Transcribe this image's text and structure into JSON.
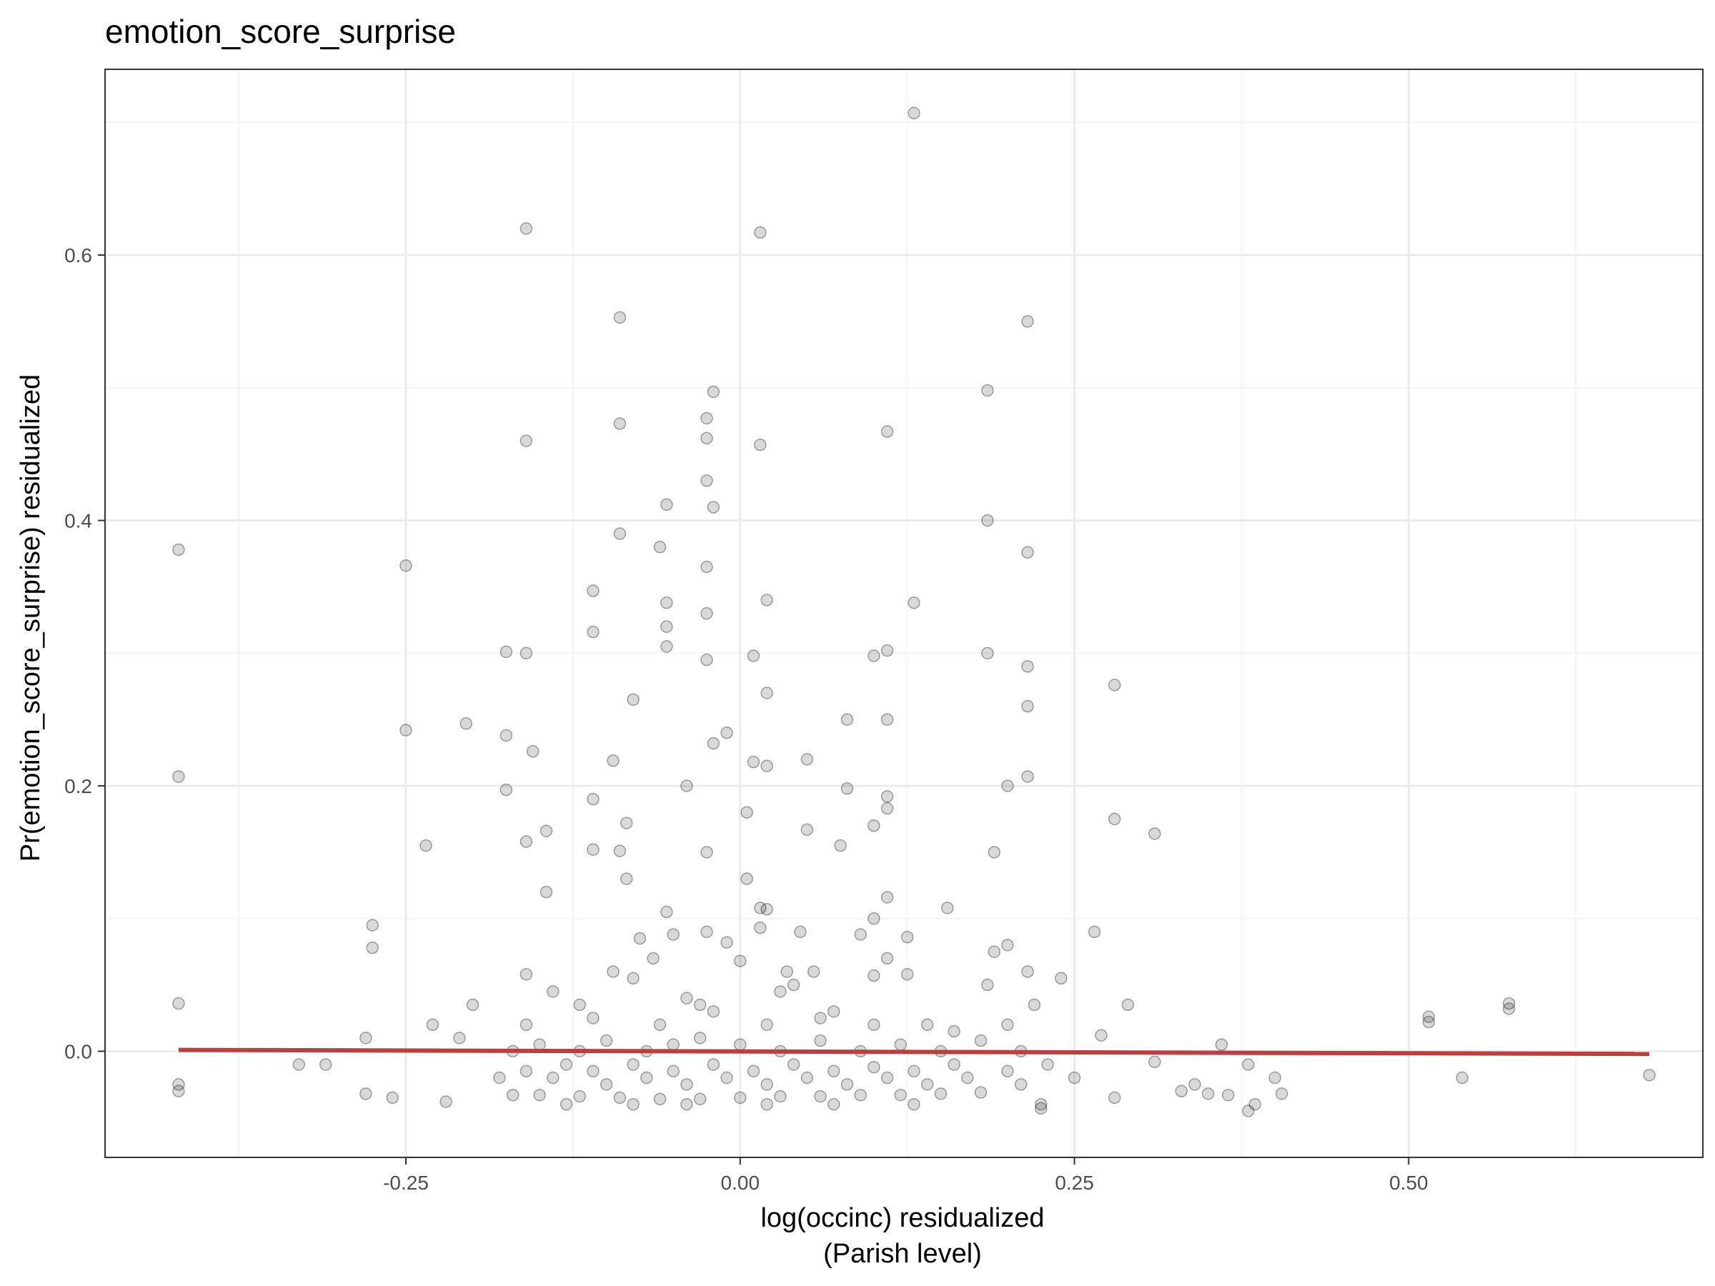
{
  "chart_data": {
    "type": "scatter",
    "title": "emotion_score_surprise",
    "xlabel_line1": "log(occinc) residualized",
    "xlabel_line2": "(Parish level)",
    "ylabel": "Pr(emotion_score_surprise) residualized",
    "xlim": [
      -0.475,
      0.72
    ],
    "ylim": [
      -0.08,
      0.74
    ],
    "x_ticks": [
      {
        "value": -0.25,
        "label": "-0.25"
      },
      {
        "value": 0.0,
        "label": "0.00"
      },
      {
        "value": 0.25,
        "label": "0.25"
      },
      {
        "value": 0.5,
        "label": "0.50"
      }
    ],
    "y_ticks": [
      {
        "value": 0.0,
        "label": "0.0"
      },
      {
        "value": 0.2,
        "label": "0.2"
      },
      {
        "value": 0.4,
        "label": "0.4"
      },
      {
        "value": 0.6,
        "label": "0.6"
      }
    ],
    "grid": true,
    "fit_line": {
      "color": "#b94040",
      "x": [
        -0.42,
        0.68
      ],
      "y": [
        0.001,
        -0.002
      ]
    },
    "point_color": "#000000",
    "points": [
      {
        "x": 0.13,
        "y": 0.707
      },
      {
        "x": -0.16,
        "y": 0.62
      },
      {
        "x": 0.015,
        "y": 0.617
      },
      {
        "x": -0.09,
        "y": 0.553
      },
      {
        "x": 0.215,
        "y": 0.55
      },
      {
        "x": -0.02,
        "y": 0.497
      },
      {
        "x": 0.185,
        "y": 0.498
      },
      {
        "x": -0.025,
        "y": 0.477
      },
      {
        "x": -0.09,
        "y": 0.473
      },
      {
        "x": 0.11,
        "y": 0.467
      },
      {
        "x": -0.025,
        "y": 0.462
      },
      {
        "x": -0.16,
        "y": 0.46
      },
      {
        "x": 0.015,
        "y": 0.457
      },
      {
        "x": -0.025,
        "y": 0.43
      },
      {
        "x": -0.055,
        "y": 0.412
      },
      {
        "x": -0.02,
        "y": 0.41
      },
      {
        "x": 0.185,
        "y": 0.4
      },
      {
        "x": -0.09,
        "y": 0.39
      },
      {
        "x": -0.06,
        "y": 0.38
      },
      {
        "x": -0.42,
        "y": 0.378
      },
      {
        "x": 0.215,
        "y": 0.376
      },
      {
        "x": -0.25,
        "y": 0.366
      },
      {
        "x": -0.025,
        "y": 0.365
      },
      {
        "x": -0.11,
        "y": 0.347
      },
      {
        "x": 0.02,
        "y": 0.34
      },
      {
        "x": 0.13,
        "y": 0.338
      },
      {
        "x": -0.055,
        "y": 0.338
      },
      {
        "x": -0.055,
        "y": 0.32
      },
      {
        "x": -0.11,
        "y": 0.316
      },
      {
        "x": -0.025,
        "y": 0.33
      },
      {
        "x": -0.055,
        "y": 0.305
      },
      {
        "x": 0.11,
        "y": 0.302
      },
      {
        "x": -0.175,
        "y": 0.301
      },
      {
        "x": -0.16,
        "y": 0.3
      },
      {
        "x": 0.185,
        "y": 0.3
      },
      {
        "x": 0.01,
        "y": 0.298
      },
      {
        "x": 0.1,
        "y": 0.298
      },
      {
        "x": -0.025,
        "y": 0.295
      },
      {
        "x": 0.215,
        "y": 0.29
      },
      {
        "x": 0.28,
        "y": 0.276
      },
      {
        "x": 0.02,
        "y": 0.27
      },
      {
        "x": -0.08,
        "y": 0.265
      },
      {
        "x": 0.215,
        "y": 0.26
      },
      {
        "x": 0.08,
        "y": 0.25
      },
      {
        "x": 0.11,
        "y": 0.25
      },
      {
        "x": -0.205,
        "y": 0.247
      },
      {
        "x": -0.25,
        "y": 0.242
      },
      {
        "x": -0.01,
        "y": 0.24
      },
      {
        "x": -0.175,
        "y": 0.238
      },
      {
        "x": -0.02,
        "y": 0.232
      },
      {
        "x": -0.155,
        "y": 0.226
      },
      {
        "x": 0.05,
        "y": 0.22
      },
      {
        "x": -0.095,
        "y": 0.219
      },
      {
        "x": 0.01,
        "y": 0.218
      },
      {
        "x": 0.02,
        "y": 0.215
      },
      {
        "x": -0.42,
        "y": 0.207
      },
      {
        "x": 0.215,
        "y": 0.207
      },
      {
        "x": -0.04,
        "y": 0.2
      },
      {
        "x": 0.2,
        "y": 0.2
      },
      {
        "x": 0.08,
        "y": 0.198
      },
      {
        "x": -0.175,
        "y": 0.197
      },
      {
        "x": 0.11,
        "y": 0.192
      },
      {
        "x": -0.11,
        "y": 0.19
      },
      {
        "x": 0.11,
        "y": 0.183
      },
      {
        "x": 0.005,
        "y": 0.18
      },
      {
        "x": 0.28,
        "y": 0.175
      },
      {
        "x": -0.085,
        "y": 0.172
      },
      {
        "x": 0.1,
        "y": 0.17
      },
      {
        "x": -0.145,
        "y": 0.166
      },
      {
        "x": 0.05,
        "y": 0.167
      },
      {
        "x": 0.31,
        "y": 0.164
      },
      {
        "x": -0.16,
        "y": 0.158
      },
      {
        "x": -0.235,
        "y": 0.155
      },
      {
        "x": 0.075,
        "y": 0.155
      },
      {
        "x": -0.11,
        "y": 0.152
      },
      {
        "x": -0.09,
        "y": 0.151
      },
      {
        "x": -0.025,
        "y": 0.15
      },
      {
        "x": 0.19,
        "y": 0.15
      },
      {
        "x": -0.085,
        "y": 0.13
      },
      {
        "x": 0.005,
        "y": 0.13
      },
      {
        "x": -0.145,
        "y": 0.12
      },
      {
        "x": 0.11,
        "y": 0.116
      },
      {
        "x": 0.015,
        "y": 0.108
      },
      {
        "x": 0.155,
        "y": 0.108
      },
      {
        "x": 0.02,
        "y": 0.107
      },
      {
        "x": -0.055,
        "y": 0.105
      },
      {
        "x": 0.1,
        "y": 0.1
      },
      {
        "x": -0.275,
        "y": 0.095
      },
      {
        "x": 0.015,
        "y": 0.093
      },
      {
        "x": 0.265,
        "y": 0.09
      },
      {
        "x": -0.025,
        "y": 0.09
      },
      {
        "x": 0.09,
        "y": 0.088
      },
      {
        "x": -0.05,
        "y": 0.088
      },
      {
        "x": 0.045,
        "y": 0.09
      },
      {
        "x": -0.075,
        "y": 0.085
      },
      {
        "x": 0.125,
        "y": 0.086
      },
      {
        "x": -0.01,
        "y": 0.082
      },
      {
        "x": -0.275,
        "y": 0.078
      },
      {
        "x": 0.2,
        "y": 0.08
      },
      {
        "x": 0.19,
        "y": 0.075
      },
      {
        "x": 0.11,
        "y": 0.07
      },
      {
        "x": -0.065,
        "y": 0.07
      },
      {
        "x": 0.0,
        "y": 0.068
      },
      {
        "x": -0.095,
        "y": 0.06
      },
      {
        "x": 0.215,
        "y": 0.06
      },
      {
        "x": 0.035,
        "y": 0.06
      },
      {
        "x": 0.1,
        "y": 0.057
      },
      {
        "x": 0.125,
        "y": 0.058
      },
      {
        "x": 0.055,
        "y": 0.06
      },
      {
        "x": 0.24,
        "y": 0.055
      },
      {
        "x": -0.16,
        "y": 0.058
      },
      {
        "x": -0.08,
        "y": 0.055
      },
      {
        "x": 0.04,
        "y": 0.05
      },
      {
        "x": 0.185,
        "y": 0.05
      },
      {
        "x": -0.42,
        "y": 0.036
      },
      {
        "x": 0.575,
        "y": 0.036
      },
      {
        "x": 0.575,
        "y": 0.032
      },
      {
        "x": 0.515,
        "y": 0.026
      },
      {
        "x": 0.515,
        "y": 0.022
      },
      {
        "x": 0.29,
        "y": 0.035
      },
      {
        "x": 0.22,
        "y": 0.035
      },
      {
        "x": -0.2,
        "y": 0.035
      },
      {
        "x": -0.12,
        "y": 0.035
      },
      {
        "x": -0.03,
        "y": 0.035
      },
      {
        "x": 0.07,
        "y": 0.03
      },
      {
        "x": -0.23,
        "y": 0.02
      },
      {
        "x": 0.14,
        "y": 0.02
      },
      {
        "x": 0.27,
        "y": 0.012
      },
      {
        "x": -0.28,
        "y": 0.01
      },
      {
        "x": -0.21,
        "y": 0.01
      },
      {
        "x": 0.36,
        "y": 0.005
      },
      {
        "x": -0.33,
        "y": -0.01
      },
      {
        "x": -0.31,
        "y": -0.01
      },
      {
        "x": 0.31,
        "y": -0.008
      },
      {
        "x": 0.38,
        "y": -0.01
      },
      {
        "x": 0.4,
        "y": -0.02
      },
      {
        "x": 0.54,
        "y": -0.02
      },
      {
        "x": 0.68,
        "y": -0.018
      },
      {
        "x": 0.34,
        "y": -0.025
      },
      {
        "x": -0.42,
        "y": -0.025
      },
      {
        "x": -0.42,
        "y": -0.03
      },
      {
        "x": -0.28,
        "y": -0.032
      },
      {
        "x": -0.26,
        "y": -0.035
      },
      {
        "x": 0.225,
        "y": -0.04
      },
      {
        "x": 0.225,
        "y": -0.043
      },
      {
        "x": 0.385,
        "y": -0.04
      },
      {
        "x": 0.38,
        "y": -0.045
      },
      {
        "x": -0.22,
        "y": -0.038
      },
      {
        "x": 0.28,
        "y": -0.035
      },
      {
        "x": 0.33,
        "y": -0.03
      },
      {
        "x": 0.35,
        "y": -0.032
      },
      {
        "x": 0.365,
        "y": -0.033
      },
      {
        "x": 0.405,
        "y": -0.032
      },
      {
        "x": -0.17,
        "y": -0.033
      },
      {
        "x": -0.15,
        "y": -0.033
      },
      {
        "x": -0.12,
        "y": -0.034
      },
      {
        "x": -0.09,
        "y": -0.035
      },
      {
        "x": -0.06,
        "y": -0.036
      },
      {
        "x": -0.03,
        "y": -0.036
      },
      {
        "x": 0.0,
        "y": -0.035
      },
      {
        "x": 0.03,
        "y": -0.034
      },
      {
        "x": 0.06,
        "y": -0.034
      },
      {
        "x": 0.09,
        "y": -0.033
      },
      {
        "x": 0.12,
        "y": -0.033
      },
      {
        "x": 0.15,
        "y": -0.032
      },
      {
        "x": 0.18,
        "y": -0.031
      },
      {
        "x": -0.18,
        "y": -0.02
      },
      {
        "x": -0.16,
        "y": -0.015
      },
      {
        "x": -0.14,
        "y": -0.02
      },
      {
        "x": -0.13,
        "y": -0.01
      },
      {
        "x": -0.11,
        "y": -0.015
      },
      {
        "x": -0.1,
        "y": -0.025
      },
      {
        "x": -0.08,
        "y": -0.01
      },
      {
        "x": -0.07,
        "y": -0.02
      },
      {
        "x": -0.05,
        "y": -0.015
      },
      {
        "x": -0.04,
        "y": -0.025
      },
      {
        "x": -0.02,
        "y": -0.01
      },
      {
        "x": -0.01,
        "y": -0.02
      },
      {
        "x": 0.01,
        "y": -0.015
      },
      {
        "x": 0.02,
        "y": -0.025
      },
      {
        "x": 0.04,
        "y": -0.01
      },
      {
        "x": 0.05,
        "y": -0.02
      },
      {
        "x": 0.07,
        "y": -0.015
      },
      {
        "x": 0.08,
        "y": -0.025
      },
      {
        "x": 0.1,
        "y": -0.012
      },
      {
        "x": 0.11,
        "y": -0.02
      },
      {
        "x": 0.13,
        "y": -0.015
      },
      {
        "x": 0.14,
        "y": -0.025
      },
      {
        "x": 0.16,
        "y": -0.01
      },
      {
        "x": 0.17,
        "y": -0.02
      },
      {
        "x": 0.2,
        "y": -0.015
      },
      {
        "x": 0.21,
        "y": -0.025
      },
      {
        "x": 0.23,
        "y": -0.01
      },
      {
        "x": 0.25,
        "y": -0.02
      },
      {
        "x": -0.17,
        "y": 0.0
      },
      {
        "x": -0.15,
        "y": 0.005
      },
      {
        "x": -0.12,
        "y": 0.0
      },
      {
        "x": -0.1,
        "y": 0.008
      },
      {
        "x": -0.07,
        "y": 0.0
      },
      {
        "x": -0.05,
        "y": 0.005
      },
      {
        "x": -0.03,
        "y": 0.01
      },
      {
        "x": 0.0,
        "y": 0.005
      },
      {
        "x": 0.03,
        "y": 0.0
      },
      {
        "x": 0.06,
        "y": 0.008
      },
      {
        "x": 0.09,
        "y": 0.0
      },
      {
        "x": 0.12,
        "y": 0.005
      },
      {
        "x": 0.15,
        "y": 0.0
      },
      {
        "x": 0.18,
        "y": 0.008
      },
      {
        "x": 0.21,
        "y": 0.0
      },
      {
        "x": -0.16,
        "y": 0.02
      },
      {
        "x": -0.11,
        "y": 0.025
      },
      {
        "x": -0.06,
        "y": 0.02
      },
      {
        "x": -0.02,
        "y": 0.03
      },
      {
        "x": 0.02,
        "y": 0.02
      },
      {
        "x": 0.06,
        "y": 0.025
      },
      {
        "x": 0.1,
        "y": 0.02
      },
      {
        "x": 0.16,
        "y": 0.015
      },
      {
        "x": 0.2,
        "y": 0.02
      },
      {
        "x": -0.14,
        "y": 0.045
      },
      {
        "x": -0.04,
        "y": 0.04
      },
      {
        "x": 0.03,
        "y": 0.045
      },
      {
        "x": -0.13,
        "y": -0.04
      },
      {
        "x": -0.08,
        "y": -0.04
      },
      {
        "x": -0.04,
        "y": -0.04
      },
      {
        "x": 0.02,
        "y": -0.04
      },
      {
        "x": 0.07,
        "y": -0.04
      },
      {
        "x": 0.13,
        "y": -0.04
      }
    ]
  }
}
